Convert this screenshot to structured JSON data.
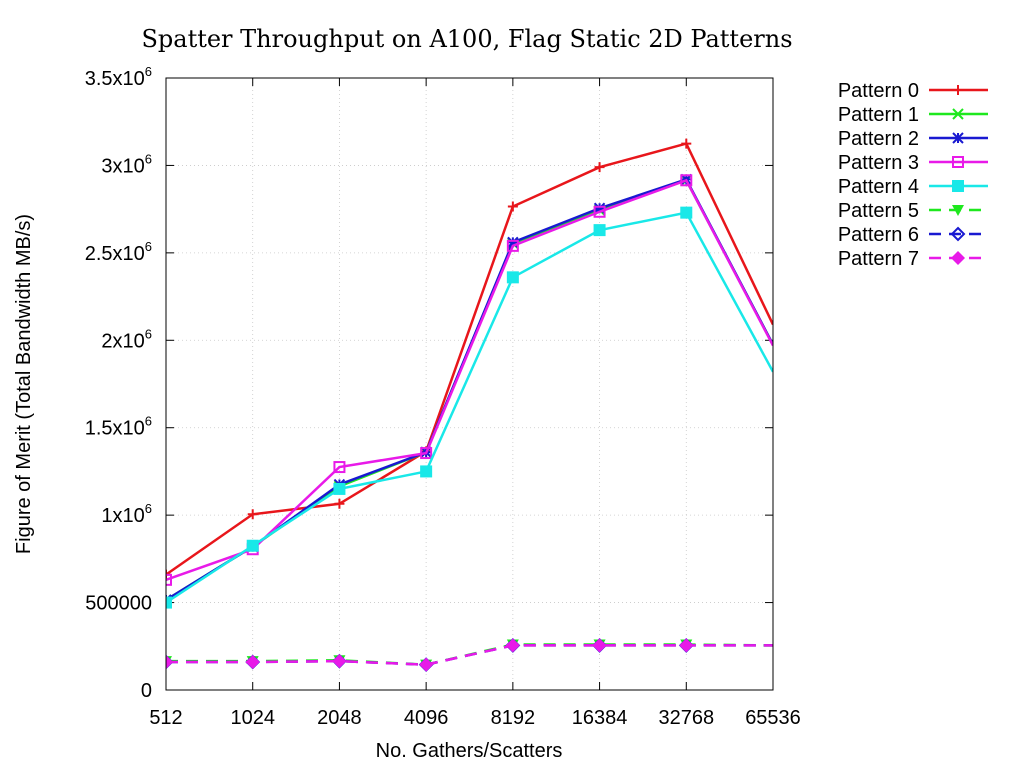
{
  "chart_data": {
    "type": "line",
    "title": "Spatter Throughput on A100, Flag Static 2D Patterns",
    "xlabel": "No. Gathers/Scatters",
    "ylabel": "Figure of Merit (Total Bandwidth MB/s)",
    "categories": [
      "512",
      "1024",
      "2048",
      "4096",
      "8192",
      "16384",
      "32768",
      "65536"
    ],
    "ylim": [
      0,
      3500000
    ],
    "y_ticks": [
      {
        "value": 0,
        "mantissa": "0",
        "exp": ""
      },
      {
        "value": 500000,
        "mantissa": "500000",
        "exp": ""
      },
      {
        "value": 1000000,
        "mantissa": "1x10",
        "exp": "6"
      },
      {
        "value": 1500000,
        "mantissa": "1.5x10",
        "exp": "6"
      },
      {
        "value": 2000000,
        "mantissa": "2x10",
        "exp": "6"
      },
      {
        "value": 2500000,
        "mantissa": "2.5x10",
        "exp": "6"
      },
      {
        "value": 3000000,
        "mantissa": "3x10",
        "exp": "6"
      },
      {
        "value": 3500000,
        "mantissa": "3.5x10",
        "exp": "6"
      }
    ],
    "grid": true,
    "legend_position": "outside-right-top",
    "series": [
      {
        "name": "Pattern 0",
        "color": "#e8161b",
        "dash": "solid",
        "marker": "plus",
        "values": [
          660000,
          1005000,
          1065000,
          1365000,
          2765000,
          2990000,
          3125000,
          2090000
        ]
      },
      {
        "name": "Pattern 1",
        "color": "#1ee81e",
        "dash": "solid",
        "marker": "x",
        "values": [
          515000,
          820000,
          1165000,
          1360000,
          2555000,
          2745000,
          2915000,
          1975000
        ]
      },
      {
        "name": "Pattern 2",
        "color": "#1919d1",
        "dash": "solid",
        "marker": "asterisk",
        "values": [
          515000,
          820000,
          1175000,
          1360000,
          2560000,
          2755000,
          2920000,
          1975000
        ]
      },
      {
        "name": "Pattern 3",
        "color": "#e81ae8",
        "dash": "solid",
        "marker": "square-open",
        "values": [
          630000,
          805000,
          1275000,
          1355000,
          2540000,
          2735000,
          2915000,
          1970000
        ]
      },
      {
        "name": "Pattern 4",
        "color": "#19e8e8",
        "dash": "solid",
        "marker": "square-filled",
        "values": [
          500000,
          825000,
          1150000,
          1250000,
          2360000,
          2630000,
          2730000,
          1820000
        ]
      },
      {
        "name": "Pattern 5",
        "color": "#1ee81e",
        "dash": "dashed",
        "marker": "triangle-down-filled",
        "values": [
          165000,
          165000,
          170000,
          145000,
          260000,
          260000,
          260000,
          255000
        ]
      },
      {
        "name": "Pattern 6",
        "color": "#1919d1",
        "dash": "dashed",
        "marker": "diamond-open",
        "values": [
          160000,
          160000,
          165000,
          145000,
          255000,
          255000,
          255000,
          255000
        ]
      },
      {
        "name": "Pattern 7",
        "color": "#e81ae8",
        "dash": "dashed",
        "marker": "diamond-filled",
        "values": [
          160000,
          160000,
          165000,
          145000,
          255000,
          255000,
          255000,
          255000
        ]
      }
    ]
  }
}
